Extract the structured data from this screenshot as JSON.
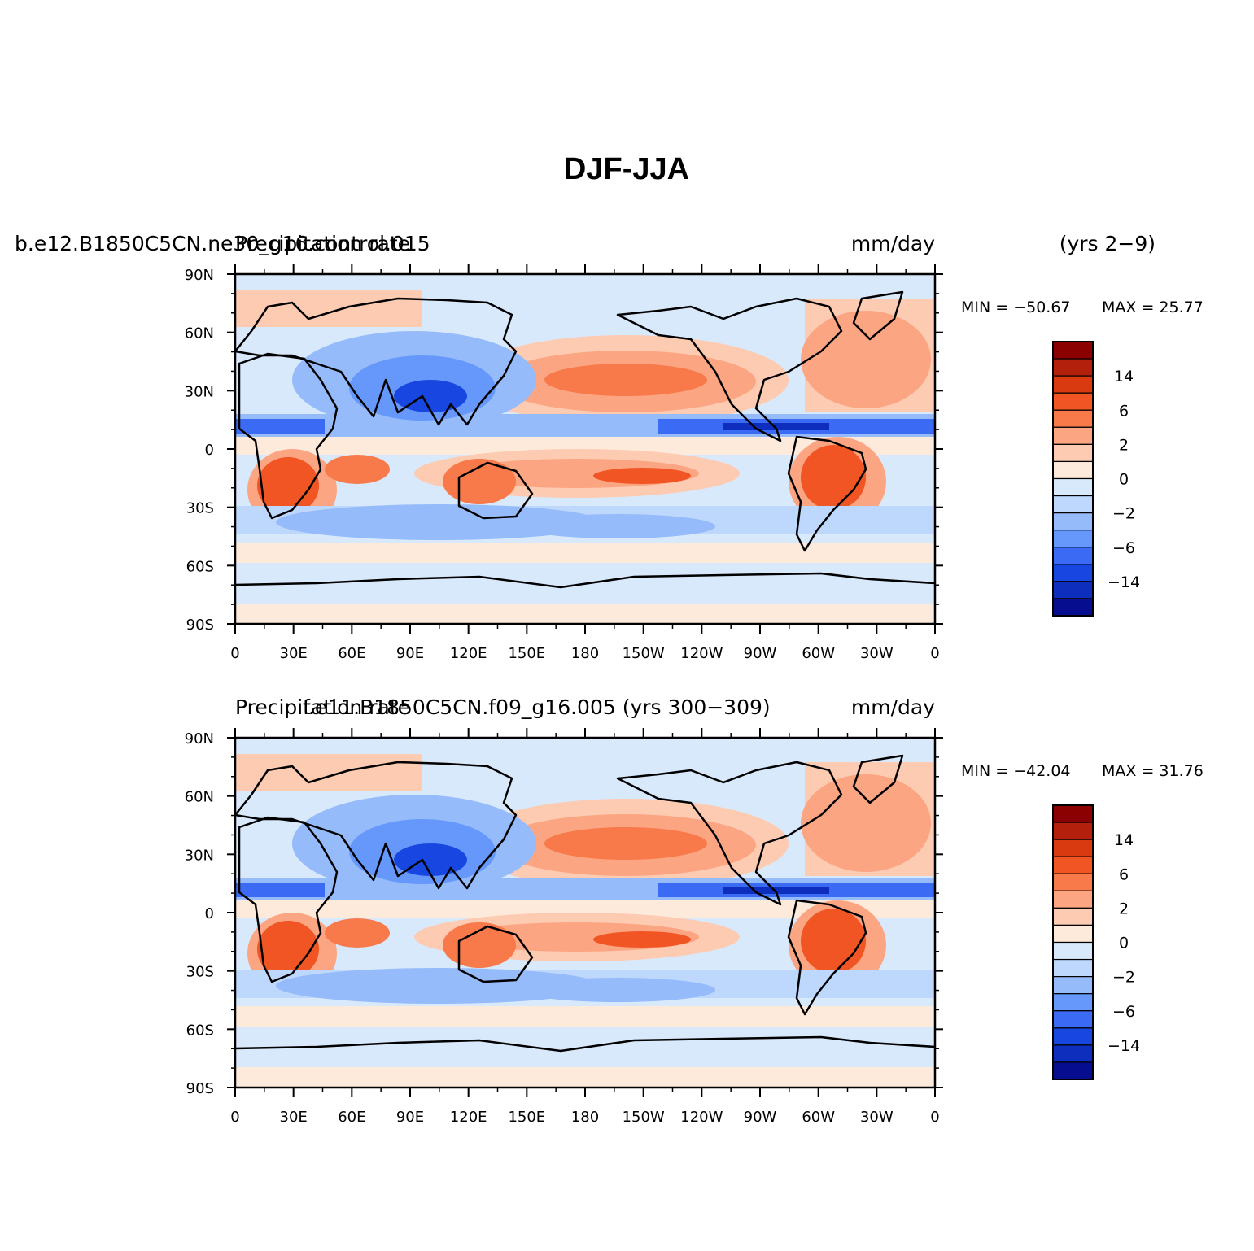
{
  "figure": {
    "title": "DJF-JJA",
    "panels": [
      {
        "case_left": "b.e12.B1850C5CN.ne30_g16.control.015",
        "variable": "Precipitation rate",
        "units": "mm/day",
        "years": "(yrs 2−9)",
        "min_label": "MIN = −50.67",
        "max_label": "MAX =  25.77",
        "min": -50.67,
        "max": 25.77
      },
      {
        "case_left": "f.e11.B1850C5CN.f09_g16.005 (yrs 300−309)",
        "variable": "Precipitation rate",
        "units": "mm/day",
        "years": "",
        "min_label": "MIN = −42.04",
        "max_label": "MAX =  31.76",
        "min": -42.04,
        "max": 31.76
      }
    ],
    "lat_ticks": [
      "90N",
      "60N",
      "30N",
      "0",
      "30S",
      "60S",
      "90S"
    ],
    "lon_ticks": [
      "0",
      "30E",
      "60E",
      "90E",
      "120E",
      "150E",
      "180",
      "150W",
      "120W",
      "90W",
      "60W",
      "30W",
      "0"
    ],
    "colorbar": {
      "colors": [
        "#8b0000",
        "#b3200c",
        "#d93a10",
        "#f05523",
        "#f8794a",
        "#fba583",
        "#fdcbb2",
        "#feeadb",
        "#d8e9fc",
        "#bed7fc",
        "#96bbfa",
        "#6698fb",
        "#3b6bf5",
        "#1846e0",
        "#0e2fbd",
        "#070d8f"
      ],
      "labels": [
        "14",
        "6",
        "2",
        "0",
        "−2",
        "−6",
        "−14"
      ]
    }
  }
}
